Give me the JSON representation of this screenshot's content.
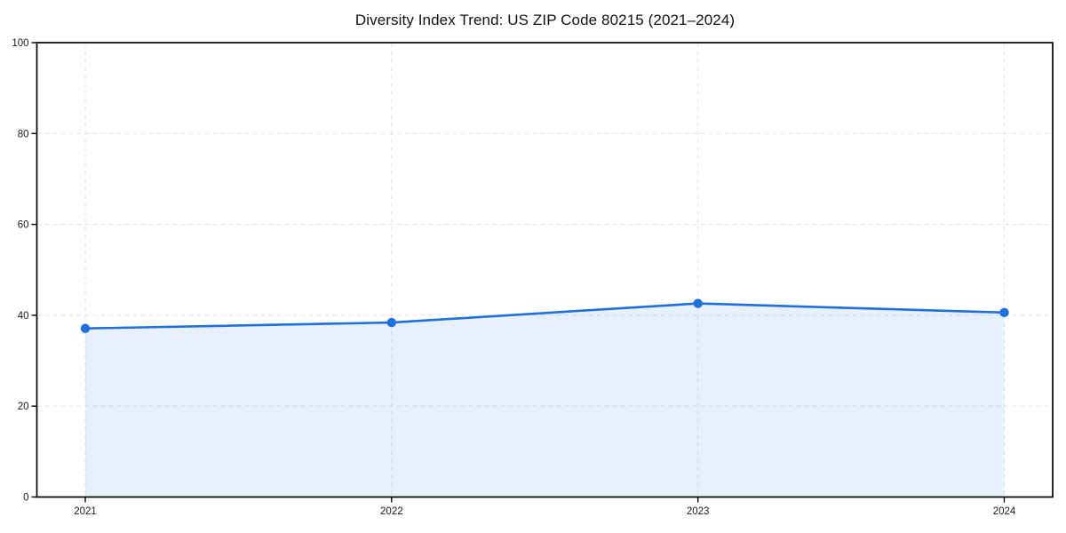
{
  "page": {
    "background": "#ffffff"
  },
  "chart_data": {
    "type": "area",
    "title": "Diversity Index Trend: US ZIP Code 80215 (2021–2024)",
    "categories": [
      "2021",
      "2022",
      "2023",
      "2024"
    ],
    "series": [
      {
        "name": "Diversity Index",
        "values": [
          37.1,
          38.4,
          42.6,
          40.6
        ]
      }
    ],
    "xlabel": "",
    "ylabel": "",
    "ylim": [
      0,
      100
    ],
    "yticks": [
      0,
      20,
      40,
      60,
      80,
      100
    ],
    "grid": true,
    "grid_style": "dashed",
    "legend_position": "none",
    "line_color": "#1f6fe0",
    "marker_color": "#1f6fe0",
    "fill_color": "rgba(31, 111, 224, 0.10)",
    "grid_color": "#e2e2e2",
    "axis_color": "#000000",
    "tick_label_color": "#1a1a1a",
    "title_color": "#111111"
  }
}
